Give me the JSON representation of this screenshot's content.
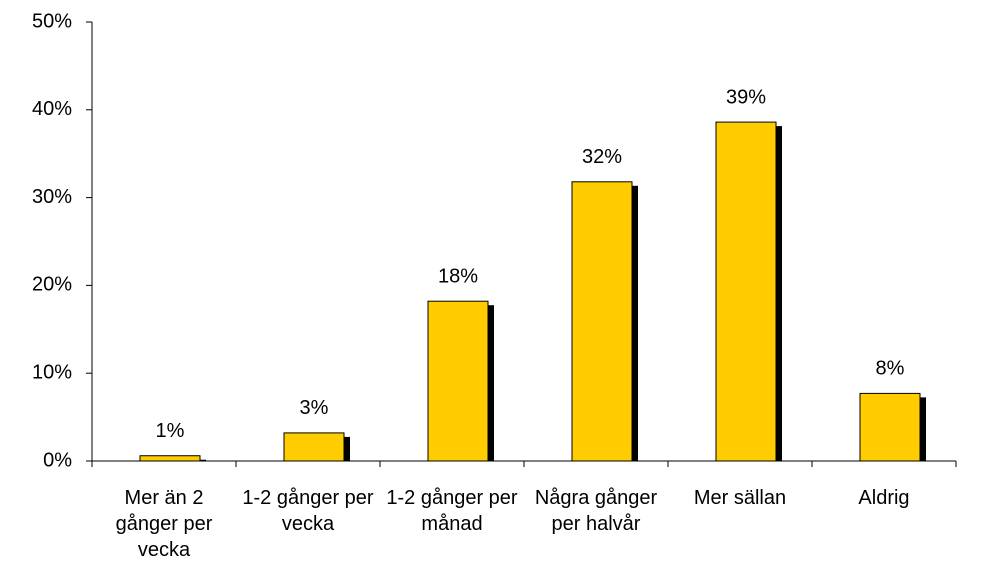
{
  "chart_data": {
    "type": "bar",
    "categories": [
      "Mer än 2 gånger per vecka",
      "1-2 gånger per vecka",
      "1-2 gånger per månad",
      "Några gånger per halvår",
      "Mer sällan",
      "Aldrig"
    ],
    "values": [
      0.6,
      3.2,
      18.2,
      31.8,
      38.6,
      7.7
    ],
    "value_labels": [
      "1%",
      "3%",
      "18%",
      "32%",
      "39%",
      "8%"
    ],
    "color": "#ffcc00",
    "ylim": [
      0,
      50
    ],
    "yticks": [
      {
        "value": 0,
        "label": "0%"
      },
      {
        "value": 10,
        "label": "10%"
      },
      {
        "value": 20,
        "label": "20%"
      },
      {
        "value": 30,
        "label": "30%"
      },
      {
        "value": 40,
        "label": "40%"
      },
      {
        "value": 50,
        "label": "50%"
      }
    ]
  }
}
